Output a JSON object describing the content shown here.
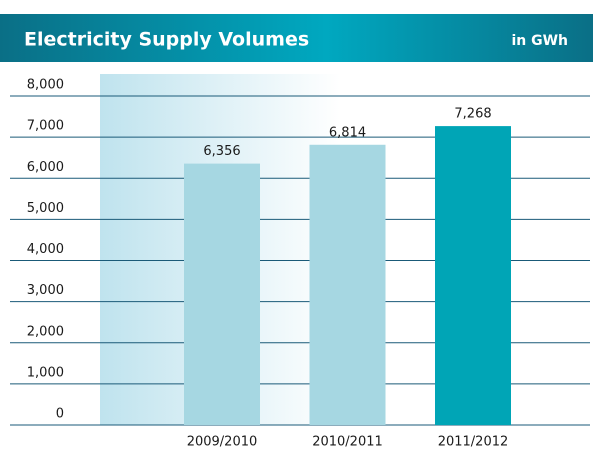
{
  "chart_data": {
    "type": "bar",
    "title": "Electricity Supply Volumes",
    "unit": "in GWh",
    "categories": [
      "2009/2010",
      "2010/2011",
      "2011/2012"
    ],
    "values": [
      6356,
      6814,
      7268
    ],
    "value_labels": [
      "6,356",
      "6,814",
      "7,268"
    ],
    "colors": [
      "#a6d7e2",
      "#a6d7e2",
      "#00a5b6"
    ],
    "ylim": [
      0,
      8000
    ],
    "yticks": [
      0,
      {
        "value": 1000,
        "label": "1,000"
      },
      {
        "value": 2000,
        "label": "2,000"
      },
      {
        "value": 3000,
        "label": "3,000"
      },
      {
        "value": 4000,
        "label": "4,000"
      },
      {
        "value": 5000,
        "label": "5,000"
      },
      {
        "value": 6000,
        "label": "6,000"
      },
      {
        "value": 7000,
        "label": "7,000"
      },
      {
        "value": 8000,
        "label": "8,000"
      }
    ],
    "grid": true
  }
}
